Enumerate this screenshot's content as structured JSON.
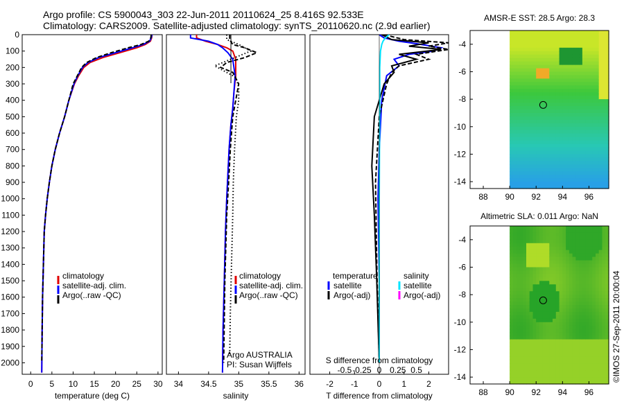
{
  "figure": {
    "title_line1": "Argo profile: CS 5900043_303 22-Jun-2011 20110624_25 8.416S 92.533E",
    "title_line2": "Climatology: CARS2009. Satellite-adjusted climatology: synTS_20110620.nc (2.9d earlier)",
    "side_stamp": "©IMOS 27-Sep-2011 20:00:04",
    "colors": {
      "climatology": "#e00000",
      "satellite": "#0000ff",
      "argo": "#000000",
      "s_satellite": "#00e5ff",
      "s_argo": "#ff00ff"
    }
  },
  "chart_data": [
    {
      "id": "temperature",
      "type": "line",
      "xlabel": "temperature (deg C)",
      "ylabel": "",
      "xlim": [
        -2,
        31
      ],
      "ylim": [
        2070,
        0
      ],
      "xticks": [
        0,
        5,
        10,
        15,
        20,
        25,
        30
      ],
      "yticks": [
        0,
        100,
        200,
        300,
        400,
        500,
        600,
        700,
        800,
        900,
        1000,
        1100,
        1200,
        1300,
        1400,
        1500,
        1600,
        1700,
        1800,
        1900,
        2000
      ],
      "legend": [
        "climatology",
        "satellite-adj. clim.",
        "Argo(..raw -QC)"
      ],
      "series": [
        {
          "name": "climatology",
          "color": "#e00000",
          "style": "solid",
          "x": [
            28.6,
            28.5,
            28.2,
            27,
            25,
            21,
            17,
            14,
            12.5,
            11.3,
            10.3,
            9,
            8,
            6.8,
            5.8,
            5,
            4.4,
            3.9,
            3.5,
            3.2,
            3,
            2.8,
            2.7,
            2.6
          ],
          "y": [
            0,
            20,
            40,
            60,
            80,
            110,
            140,
            170,
            200,
            250,
            300,
            400,
            500,
            600,
            700,
            800,
            900,
            1000,
            1100,
            1200,
            1400,
            1600,
            1800,
            2060
          ]
        },
        {
          "name": "satellite-adj. clim.",
          "color": "#0000ff",
          "style": "solid",
          "x": [
            28.6,
            28.4,
            28,
            26.5,
            24,
            20,
            16,
            13.5,
            12.2,
            11.1,
            10.2,
            9,
            8,
            6.8,
            5.8,
            5,
            4.4,
            3.9,
            3.5,
            3.2,
            3,
            2.8,
            2.7,
            2.6
          ],
          "y": [
            0,
            20,
            40,
            60,
            80,
            110,
            140,
            170,
            200,
            250,
            300,
            400,
            500,
            600,
            700,
            800,
            900,
            1000,
            1100,
            1200,
            1400,
            1600,
            1800,
            2060
          ]
        },
        {
          "name": "Argo raw",
          "color": "#000000",
          "style": "dashed",
          "x": [
            28.4,
            28.3,
            27.8,
            26,
            23,
            19,
            15.5,
            13.2,
            12,
            11,
            10,
            9,
            8,
            6.8,
            5.8,
            5,
            4.4,
            3.9,
            3.5,
            3.2,
            3,
            2.8,
            2.7,
            2.6
          ],
          "y": [
            0,
            20,
            40,
            60,
            80,
            110,
            140,
            170,
            200,
            250,
            300,
            400,
            500,
            600,
            700,
            800,
            900,
            1000,
            1100,
            1200,
            1400,
            1600,
            1800,
            2000
          ]
        }
      ]
    },
    {
      "id": "salinity",
      "type": "line",
      "xlabel": "salinity",
      "xlim": [
        33.8,
        36.1
      ],
      "ylim": [
        2070,
        0
      ],
      "xticks": [
        34,
        34.5,
        35,
        35.5,
        36
      ],
      "legend": [
        "climatology",
        "satellite-adj. clim.",
        "Argo(..raw -QC)"
      ],
      "annotation": [
        "Argo AUSTRALIA",
        "PI: Susan Wijffels"
      ],
      "series": [
        {
          "name": "climatology",
          "color": "#e00000",
          "style": "solid",
          "x": [
            34.3,
            34.3,
            34.45,
            34.65,
            34.8,
            34.9,
            34.95,
            34.95,
            34.92,
            34.9,
            34.87,
            34.84,
            34.82,
            34.8,
            34.78,
            34.76,
            34.74,
            34.73
          ],
          "y": [
            0,
            20,
            40,
            60,
            80,
            100,
            150,
            250,
            350,
            450,
            550,
            700,
            850,
            1000,
            1200,
            1500,
            1800,
            2060
          ]
        },
        {
          "name": "satellite-adj. clim.",
          "color": "#0000ff",
          "style": "solid",
          "x": [
            34.2,
            34.2,
            34.5,
            34.65,
            34.73,
            34.82,
            34.9,
            34.94,
            34.92,
            34.9,
            34.87,
            34.84,
            34.82,
            34.8,
            34.78,
            34.76,
            34.74,
            34.73
          ],
          "y": [
            0,
            20,
            40,
            60,
            80,
            110,
            150,
            250,
            350,
            450,
            550,
            700,
            850,
            1000,
            1200,
            1500,
            1800,
            2060
          ]
        },
        {
          "name": "Argo raw",
          "color": "#000000",
          "style": "dashed",
          "x": [
            34.85,
            34.85,
            34.9,
            35.1,
            35.3,
            35.1,
            34.8,
            34.7,
            34.9,
            35,
            34.95,
            34.9,
            34.88,
            34.86,
            34.84,
            34.8,
            34.77,
            34.75
          ],
          "y": [
            0,
            30,
            60,
            80,
            110,
            140,
            170,
            200,
            230,
            300,
            400,
            500,
            600,
            700,
            850,
            1100,
            1500,
            2000
          ]
        },
        {
          "name": "Argo QC",
          "color": "#000000",
          "style": "dotted",
          "x": [
            34.8,
            34.8,
            35,
            35.2,
            34.8,
            34.6,
            34.75,
            34.95,
            35,
            35,
            34.96,
            34.93,
            34.91,
            34.9,
            34.88,
            34.86,
            34.85
          ],
          "y": [
            0,
            30,
            60,
            100,
            160,
            190,
            220,
            260,
            320,
            400,
            500,
            700,
            900,
            1100,
            1400,
            1700,
            1950
          ]
        }
      ]
    },
    {
      "id": "difference",
      "type": "line",
      "xlabel": "T difference from climatology",
      "xlabel_top": "S difference from climatology",
      "xlim": [
        -2.8,
        2.8
      ],
      "ylim": [
        2070,
        0
      ],
      "xticks_T": [
        -2,
        -1,
        0,
        1,
        2
      ],
      "xticks_S": [
        "-0.5",
        "-0.25",
        "0",
        "0.25",
        "0.5"
      ],
      "legend_temperature_title": "temperature",
      "legend_salinity_title": "salinity",
      "legend_temperature": [
        "satellite",
        "Argo(-adj)"
      ],
      "legend_salinity": [
        "satellite",
        "Argo(-adj)"
      ],
      "series": [
        {
          "name": "T satellite",
          "color": "#0000ff",
          "style": "solid",
          "x": [
            0,
            0.2,
            0.8,
            1.5,
            2.5,
            2.2,
            1.2,
            0.6,
            0.8,
            0.3,
            0.1,
            0,
            -0.05,
            0,
            0
          ],
          "y": [
            0,
            20,
            40,
            55,
            80,
            100,
            120,
            150,
            190,
            250,
            400,
            700,
            1000,
            1500,
            2000
          ]
        },
        {
          "name": "T Argo",
          "color": "#000000",
          "style": "solid",
          "x": [
            0.1,
            0.5,
            2,
            1.2,
            2.5,
            0.8,
            1.5,
            0.5,
            0.6,
            0.2,
            -0.2,
            -0.3,
            -0.2,
            -0.1,
            0
          ],
          "y": [
            0,
            30,
            50,
            70,
            90,
            120,
            150,
            190,
            230,
            300,
            500,
            800,
            1100,
            1500,
            2000
          ]
        },
        {
          "name": "T Argo dashed",
          "color": "#000000",
          "style": "dashed",
          "x": [
            0.2,
            1,
            2.8,
            2,
            2.8,
            1.5,
            2,
            0.8,
            0.5,
            0.3,
            0,
            -0.15,
            -0.1,
            0
          ],
          "y": [
            0,
            30,
            50,
            70,
            90,
            120,
            150,
            190,
            230,
            300,
            500,
            900,
            1400,
            2000
          ]
        },
        {
          "name": "S satellite",
          "color": "#00e5ff",
          "style": "solid",
          "x": [
            0.4,
            0.25,
            0.15,
            0.1,
            0.05,
            0.02,
            0.02,
            0,
            0
          ],
          "y": [
            0,
            20,
            40,
            60,
            100,
            200,
            400,
            1000,
            2000
          ]
        }
      ]
    },
    {
      "id": "sst_map",
      "type": "heatmap",
      "title": "AMSR-E SST: 28.5 Argo: 28.3",
      "xlim": [
        87,
        97.5
      ],
      "ylim": [
        -14.5,
        -3
      ],
      "xticks": [
        88,
        90,
        92,
        94,
        96
      ],
      "yticks": [
        -4,
        -6,
        -8,
        -10,
        -12,
        -14
      ],
      "data_lon_range": [
        90,
        97.5
      ],
      "profile_location": {
        "lon": 92.533,
        "lat": -8.416
      }
    },
    {
      "id": "sla_map",
      "type": "heatmap",
      "title": "Altimetric SLA: 0.011 Argo: NaN",
      "xlim": [
        87,
        97.5
      ],
      "ylim": [
        -14.5,
        -3
      ],
      "xticks": [
        88,
        90,
        92,
        94,
        96
      ],
      "yticks": [
        -4,
        -6,
        -8,
        -10,
        -12,
        -14
      ],
      "data_lon_range": [
        90,
        97.5
      ],
      "profile_location": {
        "lon": 92.533,
        "lat": -8.416
      }
    }
  ]
}
